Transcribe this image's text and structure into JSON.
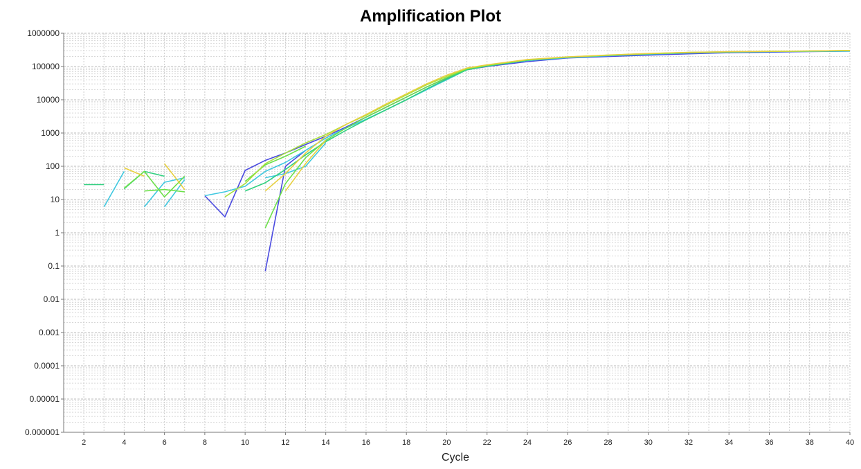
{
  "chart_data": {
    "type": "line",
    "title": "Amplification Plot",
    "xlabel": "Cycle",
    "ylabel": "",
    "xlim": [
      1,
      40
    ],
    "ylim": [
      1e-06,
      1000000
    ],
    "yscale": "log",
    "grid": true,
    "x_ticks": [
      2,
      4,
      6,
      8,
      10,
      12,
      14,
      16,
      18,
      20,
      22,
      24,
      26,
      28,
      30,
      32,
      34,
      36,
      38,
      40
    ],
    "x_tick_labels": [
      "2",
      "4",
      "6",
      "8",
      "10",
      "12",
      "14",
      "16",
      "18",
      "20",
      "22",
      "24",
      "26",
      "28",
      "30",
      "32",
      "34",
      "36",
      "38",
      "40"
    ],
    "y_ticks": [
      1e-06,
      1e-05,
      0.0001,
      0.001,
      0.01,
      0.1,
      1,
      10,
      100,
      1000,
      10000,
      100000,
      1000000
    ],
    "y_tick_labels": [
      "0.000001",
      "0.00001",
      "0.0001",
      "0.001",
      "0.01",
      "0.1",
      "1",
      "10",
      "100",
      "1000",
      "10000",
      "100000",
      "1000000"
    ],
    "series": [
      {
        "color": "#4a4ae0",
        "segments": [
          [
            [
              8,
              13
            ],
            [
              9,
              3
            ],
            [
              10,
              75
            ],
            [
              11,
              150
            ],
            [
              12,
              250
            ],
            [
              13,
              450
            ],
            [
              14,
              800
            ],
            [
              15,
              1500
            ],
            [
              16,
              3000
            ],
            [
              17,
              6000
            ],
            [
              18,
              12000
            ],
            [
              19,
              24000
            ],
            [
              20,
              45000
            ],
            [
              21,
              80000
            ],
            [
              22,
              100000
            ],
            [
              24,
              140000
            ],
            [
              26,
              180000
            ],
            [
              28,
              200000
            ],
            [
              30,
              220000
            ],
            [
              32,
              240000
            ],
            [
              34,
              260000
            ],
            [
              36,
              270000
            ],
            [
              38,
              280000
            ],
            [
              40,
              290000
            ]
          ],
          [
            [
              11,
              0.07
            ],
            [
              12,
              100
            ],
            [
              13,
              300
            ]
          ]
        ]
      },
      {
        "color": "#3fc8e0",
        "segments": [
          [
            [
              3,
              6
            ],
            [
              4,
              70
            ]
          ],
          [
            [
              5,
              6
            ],
            [
              6,
              33
            ],
            [
              7,
              45
            ]
          ],
          [
            [
              6,
              6
            ],
            [
              7,
              40
            ]
          ],
          [
            [
              8,
              13
            ],
            [
              9,
              17
            ],
            [
              10,
              25
            ],
            [
              11,
              70
            ],
            [
              12,
              130
            ],
            [
              13,
              300
            ],
            [
              14,
              700
            ],
            [
              15,
              1400
            ],
            [
              16,
              2600
            ],
            [
              17,
              5000
            ],
            [
              18,
              10000
            ],
            [
              19,
              20000
            ],
            [
              20,
              40000
            ],
            [
              21,
              80000
            ],
            [
              22,
              105000
            ],
            [
              24,
              150000
            ],
            [
              26,
              185000
            ],
            [
              28,
              210000
            ],
            [
              30,
              235000
            ],
            [
              32,
              255000
            ],
            [
              34,
              270000
            ],
            [
              36,
              280000
            ],
            [
              38,
              285000
            ],
            [
              40,
              290000
            ]
          ],
          [
            [
              11,
              45
            ],
            [
              12,
              60
            ],
            [
              13,
              100
            ],
            [
              14,
              500
            ]
          ]
        ]
      },
      {
        "color": "#30d080",
        "segments": [
          [
            [
              2,
              28
            ],
            [
              3,
              28
            ]
          ],
          [
            [
              4,
              21
            ],
            [
              5,
              70
            ],
            [
              6,
              50
            ]
          ],
          [
            [
              10,
              18
            ],
            [
              11,
              32
            ],
            [
              12,
              80
            ],
            [
              13,
              220
            ],
            [
              14,
              550
            ],
            [
              15,
              1200
            ],
            [
              16,
              2500
            ],
            [
              17,
              5000
            ],
            [
              18,
              10000
            ],
            [
              19,
              21000
            ],
            [
              20,
              42000
            ],
            [
              21,
              80000
            ],
            [
              22,
              103000
            ],
            [
              24,
              155000
            ],
            [
              26,
              190000
            ],
            [
              28,
              215000
            ],
            [
              30,
              240000
            ],
            [
              32,
              260000
            ],
            [
              34,
              275000
            ],
            [
              36,
              283000
            ],
            [
              38,
              290000
            ],
            [
              40,
              300000
            ]
          ]
        ]
      },
      {
        "color": "#6ce04a",
        "segments": [
          [
            [
              4,
              22
            ],
            [
              5,
              70
            ],
            [
              6,
              12
            ],
            [
              7,
              50
            ]
          ],
          [
            [
              5,
              18
            ],
            [
              6,
              20
            ],
            [
              7,
              17
            ]
          ],
          [
            [
              11,
              1.4
            ],
            [
              12,
              30
            ],
            [
              13,
              180
            ],
            [
              14,
              600
            ],
            [
              15,
              1400
            ],
            [
              16,
              3000
            ],
            [
              17,
              6000
            ],
            [
              18,
              12000
            ],
            [
              19,
              24000
            ],
            [
              20,
              46000
            ],
            [
              21,
              85000
            ],
            [
              22,
              108000
            ],
            [
              24,
              158000
            ],
            [
              26,
              192000
            ],
            [
              28,
              218000
            ],
            [
              30,
              242000
            ],
            [
              32,
              262000
            ],
            [
              34,
              277000
            ],
            [
              36,
              285000
            ],
            [
              38,
              292000
            ],
            [
              40,
              305000
            ]
          ],
          [
            [
              10,
              35
            ],
            [
              11,
              110
            ],
            [
              12,
              200
            ],
            [
              13,
              400
            ]
          ]
        ]
      },
      {
        "color": "#a8e040",
        "segments": [
          [
            [
              9,
              12
            ],
            [
              10,
              30
            ],
            [
              11,
              120
            ],
            [
              12,
              250
            ],
            [
              13,
              500
            ],
            [
              14,
              900
            ],
            [
              15,
              1800
            ],
            [
              16,
              3400
            ],
            [
              17,
              7000
            ],
            [
              18,
              14000
            ],
            [
              19,
              28000
            ],
            [
              20,
              50000
            ],
            [
              21,
              88000
            ],
            [
              22,
              110000
            ],
            [
              24,
              160000
            ],
            [
              26,
              193000
            ],
            [
              28,
              220000
            ],
            [
              30,
              245000
            ],
            [
              32,
              265000
            ],
            [
              34,
              278000
            ],
            [
              36,
              286000
            ],
            [
              38,
              292000
            ],
            [
              40,
              302000
            ]
          ]
        ]
      },
      {
        "color": "#e8d040",
        "segments": [
          [
            [
              4,
              90
            ],
            [
              5,
              50
            ]
          ],
          [
            [
              6,
              120
            ],
            [
              7,
              20
            ]
          ],
          [
            [
              11,
              18
            ],
            [
              12,
              60
            ],
            [
              13,
              250
            ],
            [
              14,
              800
            ],
            [
              15,
              1800
            ],
            [
              16,
              3600
            ],
            [
              17,
              7500
            ],
            [
              18,
              15000
            ],
            [
              19,
              30000
            ],
            [
              20,
              55000
            ],
            [
              21,
              90000
            ],
            [
              22,
              112000
            ],
            [
              24,
              162000
            ],
            [
              26,
              195000
            ],
            [
              28,
              222000
            ],
            [
              30,
              246000
            ],
            [
              32,
              266000
            ],
            [
              34,
              279000
            ],
            [
              36,
              287000
            ],
            [
              38,
              293000
            ],
            [
              40,
              303000
            ]
          ],
          [
            [
              12,
              18
            ],
            [
              13,
              120
            ],
            [
              14,
              600
            ]
          ]
        ]
      }
    ]
  }
}
